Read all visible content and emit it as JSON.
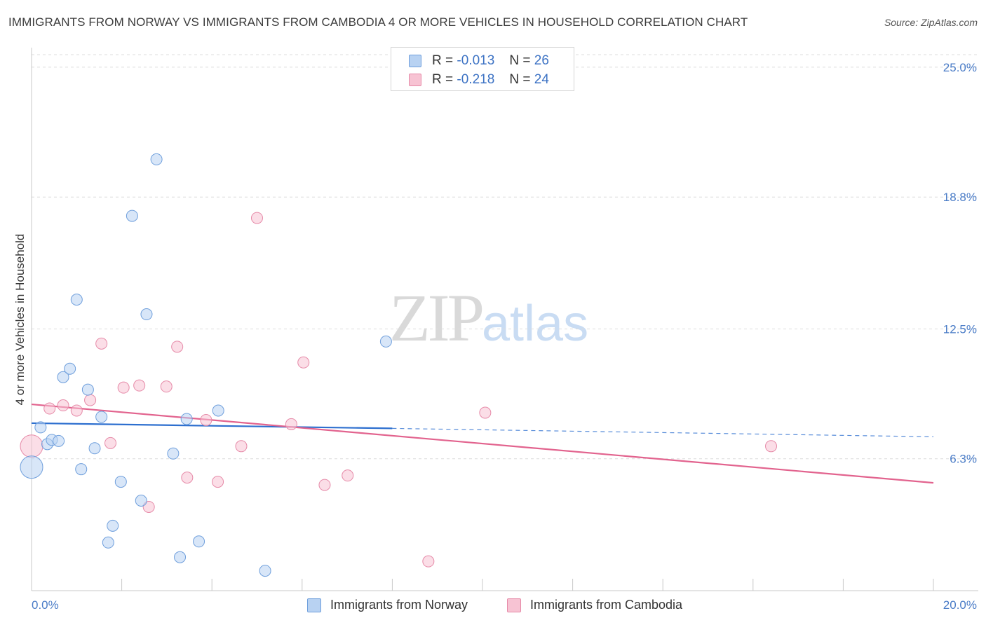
{
  "header": {
    "title": "IMMIGRANTS FROM NORWAY VS IMMIGRANTS FROM CAMBODIA 4 OR MORE VEHICLES IN HOUSEHOLD CORRELATION CHART",
    "source": "Source: ZipAtlas.com"
  },
  "watermark": {
    "zip": "ZIP",
    "atlas": "atlas"
  },
  "legend": {
    "norway": {
      "r_label": "R =",
      "r_value": "-0.013",
      "n_label": "N =",
      "n_value": "26"
    },
    "cambodia": {
      "r_label": "R =",
      "r_value": "-0.218",
      "n_label": "N =",
      "n_value": "24"
    }
  },
  "bottom_legend": {
    "norway": "Immigrants from Norway",
    "cambodia": "Immigrants from Cambodia"
  },
  "colors": {
    "norway_fill": "#b8d2f2",
    "norway_stroke": "#6f9fdc",
    "norway_line": "#2d6fcf",
    "cambodia_fill": "#f7c3d3",
    "cambodia_stroke": "#e68aa8",
    "cambodia_line": "#e2638e",
    "tick_text": "#4a7cc7"
  },
  "chart_data": {
    "type": "scatter",
    "title": "IMMIGRANTS FROM NORWAY VS IMMIGRANTS FROM CAMBODIA 4 OR MORE VEHICLES IN HOUSEHOLD CORRELATION CHART",
    "xlabel": "",
    "ylabel": "4 or more Vehicles in Household",
    "xlim": [
      0,
      20
    ],
    "ylim": [
      0,
      25.6
    ],
    "x_tick_labels": [
      "0.0%",
      "20.0%"
    ],
    "y_ticks": [
      6.3,
      12.5,
      18.8,
      25.0
    ],
    "y_tick_labels": [
      "6.3%",
      "12.5%",
      "18.8%",
      "25.0%"
    ],
    "grid": true,
    "legend_position": "top-center",
    "series": [
      {
        "name": "Immigrants from Norway",
        "r": -0.013,
        "n": 26,
        "trend": {
          "x_start": 0,
          "y_start": 8.0,
          "x_solid_end": 8.0,
          "y_solid_end": 7.75,
          "x_end": 20,
          "y_end": 7.35
        },
        "points": [
          {
            "x": 0.0,
            "y": 5.9,
            "big": true
          },
          {
            "x": 0.2,
            "y": 7.8
          },
          {
            "x": 0.35,
            "y": 7.0
          },
          {
            "x": 0.45,
            "y": 7.2
          },
          {
            "x": 0.6,
            "y": 7.15
          },
          {
            "x": 0.7,
            "y": 10.2
          },
          {
            "x": 0.85,
            "y": 10.6
          },
          {
            "x": 1.0,
            "y": 13.9
          },
          {
            "x": 1.1,
            "y": 5.8
          },
          {
            "x": 1.25,
            "y": 9.6
          },
          {
            "x": 1.4,
            "y": 6.8
          },
          {
            "x": 1.55,
            "y": 8.3
          },
          {
            "x": 1.7,
            "y": 2.3
          },
          {
            "x": 1.8,
            "y": 3.1
          },
          {
            "x": 1.98,
            "y": 5.2
          },
          {
            "x": 2.23,
            "y": 17.9
          },
          {
            "x": 2.43,
            "y": 4.3
          },
          {
            "x": 2.55,
            "y": 13.2
          },
          {
            "x": 2.77,
            "y": 20.6
          },
          {
            "x": 3.14,
            "y": 6.55
          },
          {
            "x": 3.29,
            "y": 1.6
          },
          {
            "x": 3.44,
            "y": 8.2
          },
          {
            "x": 3.71,
            "y": 2.35
          },
          {
            "x": 4.14,
            "y": 8.6
          },
          {
            "x": 5.18,
            "y": 0.95
          },
          {
            "x": 7.86,
            "y": 11.9
          }
        ]
      },
      {
        "name": "Immigrants from Cambodia",
        "r": -0.218,
        "n": 24,
        "trend": {
          "x_start": 0,
          "y_start": 8.9,
          "x_end": 20,
          "y_end": 5.15
        },
        "points": [
          {
            "x": 0.0,
            "y": 6.9,
            "big": true
          },
          {
            "x": 0.4,
            "y": 8.7
          },
          {
            "x": 0.7,
            "y": 8.85
          },
          {
            "x": 1.0,
            "y": 8.6
          },
          {
            "x": 1.3,
            "y": 9.1
          },
          {
            "x": 1.55,
            "y": 11.8
          },
          {
            "x": 1.75,
            "y": 7.05
          },
          {
            "x": 2.04,
            "y": 9.7
          },
          {
            "x": 2.39,
            "y": 9.8
          },
          {
            "x": 2.6,
            "y": 4.0
          },
          {
            "x": 2.99,
            "y": 9.75
          },
          {
            "x": 3.23,
            "y": 11.65
          },
          {
            "x": 3.45,
            "y": 5.4
          },
          {
            "x": 3.87,
            "y": 8.15
          },
          {
            "x": 4.13,
            "y": 5.2
          },
          {
            "x": 4.65,
            "y": 6.9
          },
          {
            "x": 5.0,
            "y": 17.8
          },
          {
            "x": 5.76,
            "y": 7.95
          },
          {
            "x": 6.03,
            "y": 10.9
          },
          {
            "x": 6.5,
            "y": 5.05
          },
          {
            "x": 7.01,
            "y": 5.5
          },
          {
            "x": 8.8,
            "y": 1.4
          },
          {
            "x": 10.06,
            "y": 8.5
          },
          {
            "x": 16.4,
            "y": 6.9
          }
        ]
      }
    ]
  }
}
